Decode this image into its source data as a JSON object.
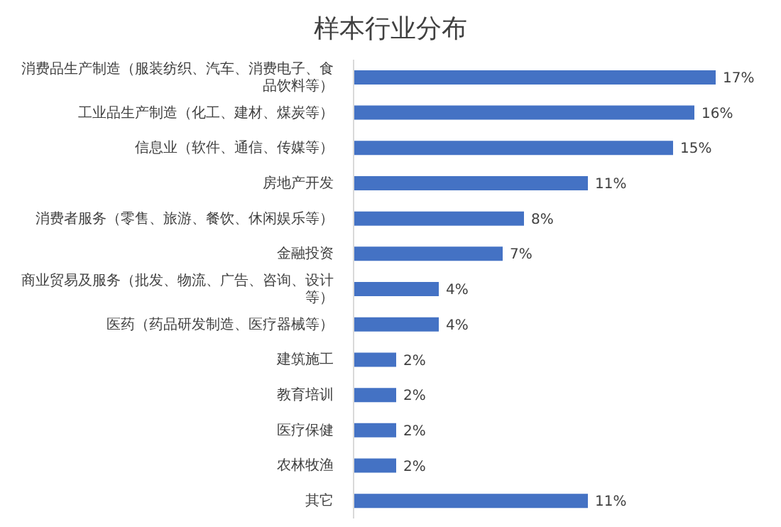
{
  "chart_data": {
    "type": "bar",
    "orientation": "horizontal",
    "title": "样本行业分布",
    "categories": [
      "消费品生产制造（服装纺织、汽车、消费电子、食品饮料等）",
      "工业品生产制造（化工、建材、煤炭等）",
      "信息业（软件、通信、传媒等）",
      "房地产开发",
      "消费者服务（零售、旅游、餐饮、休闲娱乐等）",
      "金融投资",
      "商业贸易及服务（批发、物流、广告、咨询、设计等）",
      "医药（药品研发制造、医疗器械等）",
      "建筑施工",
      "教育培训",
      "医疗保健",
      "农林牧渔",
      "其它"
    ],
    "values": [
      17,
      16,
      15,
      11,
      8,
      7,
      4,
      4,
      2,
      2,
      2,
      2,
      11
    ],
    "value_labels": [
      "17%",
      "16%",
      "15%",
      "11%",
      "8%",
      "7%",
      "4%",
      "4%",
      "2%",
      "2%",
      "2%",
      "2%",
      "11%"
    ],
    "color": "#4472c4"
  }
}
